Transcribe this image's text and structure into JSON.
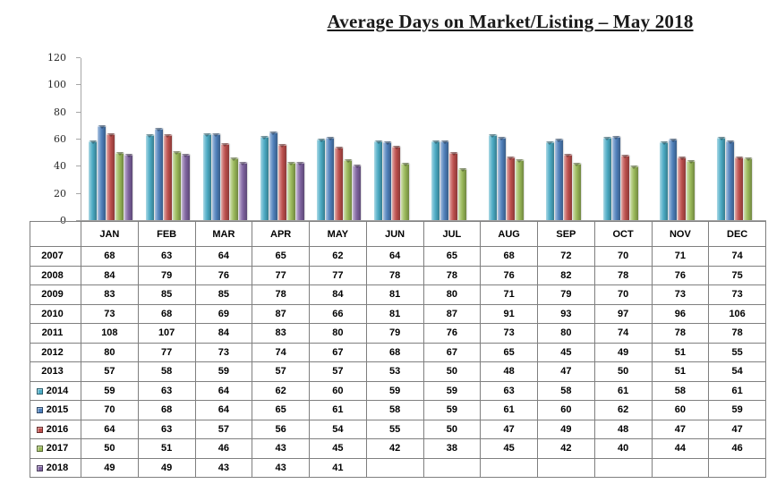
{
  "title": "Average Days on Market/Listing – May 2018",
  "chart_data": {
    "type": "bar",
    "title": "Average Days on Market/Listing – May 2018",
    "categories": [
      "JAN",
      "FEB",
      "MAR",
      "APR",
      "MAY",
      "JUN",
      "JUL",
      "AUG",
      "SEP",
      "OCT",
      "NOV",
      "DEC"
    ],
    "series": [
      {
        "name": "2014",
        "color": "#4BACC6",
        "values": [
          59,
          63,
          64,
          62,
          60,
          59,
          59,
          63,
          58,
          61,
          58,
          61
        ]
      },
      {
        "name": "2015",
        "color": "#4F81BD",
        "values": [
          70,
          68,
          64,
          65,
          61,
          58,
          59,
          61,
          60,
          62,
          60,
          59
        ]
      },
      {
        "name": "2016",
        "color": "#C0504D",
        "values": [
          64,
          63,
          57,
          56,
          54,
          55,
          50,
          47,
          49,
          48,
          47,
          47
        ]
      },
      {
        "name": "2017",
        "color": "#9BBB59",
        "values": [
          50,
          51,
          46,
          43,
          45,
          42,
          38,
          45,
          42,
          40,
          44,
          46
        ]
      },
      {
        "name": "2018",
        "color": "#8064A2",
        "values": [
          49,
          49,
          43,
          43,
          41,
          null,
          null,
          null,
          null,
          null,
          null,
          null
        ]
      }
    ],
    "xlabel": "",
    "ylabel": "",
    "ylim": [
      0,
      120
    ],
    "yticks": [
      0,
      20,
      40,
      60,
      80,
      100,
      120
    ],
    "grid": false,
    "legend_position": "table-row-markers"
  },
  "table": {
    "col_headers": [
      "JAN",
      "FEB",
      "MAR",
      "APR",
      "MAY",
      "JUN",
      "JUL",
      "AUG",
      "SEP",
      "OCT",
      "NOV",
      "DEC"
    ],
    "rows": [
      {
        "year": "2007",
        "series_color": null,
        "values": [
          "68",
          "63",
          "64",
          "65",
          "62",
          "64",
          "65",
          "68",
          "72",
          "70",
          "71",
          "74"
        ]
      },
      {
        "year": "2008",
        "series_color": null,
        "values": [
          "84",
          "79",
          "76",
          "77",
          "77",
          "78",
          "78",
          "76",
          "82",
          "78",
          "76",
          "75"
        ]
      },
      {
        "year": "2009",
        "series_color": null,
        "values": [
          "83",
          "85",
          "85",
          "78",
          "84",
          "81",
          "80",
          "71",
          "79",
          "70",
          "73",
          "73"
        ]
      },
      {
        "year": "2010",
        "series_color": null,
        "values": [
          "73",
          "68",
          "69",
          "87",
          "66",
          "81",
          "87",
          "91",
          "93",
          "97",
          "96",
          "106"
        ]
      },
      {
        "year": "2011",
        "series_color": null,
        "values": [
          "108",
          "107",
          "84",
          "83",
          "80",
          "79",
          "76",
          "73",
          "80",
          "74",
          "78",
          "78"
        ]
      },
      {
        "year": "2012",
        "series_color": null,
        "values": [
          "80",
          "77",
          "73",
          "74",
          "67",
          "68",
          "67",
          "65",
          "45",
          "49",
          "51",
          "55"
        ]
      },
      {
        "year": "2013",
        "series_color": null,
        "values": [
          "57",
          "58",
          "59",
          "57",
          "57",
          "53",
          "50",
          "48",
          "47",
          "50",
          "51",
          "54"
        ]
      },
      {
        "year": "2014",
        "series_color": "#4BACC6",
        "values": [
          "59",
          "63",
          "64",
          "62",
          "60",
          "59",
          "59",
          "63",
          "58",
          "61",
          "58",
          "61"
        ]
      },
      {
        "year": "2015",
        "series_color": "#4F81BD",
        "values": [
          "70",
          "68",
          "64",
          "65",
          "61",
          "58",
          "59",
          "61",
          "60",
          "62",
          "60",
          "59"
        ]
      },
      {
        "year": "2016",
        "series_color": "#C0504D",
        "values": [
          "64",
          "63",
          "57",
          "56",
          "54",
          "55",
          "50",
          "47",
          "49",
          "48",
          "47",
          "47"
        ]
      },
      {
        "year": "2017",
        "series_color": "#9BBB59",
        "values": [
          "50",
          "51",
          "46",
          "43",
          "45",
          "42",
          "38",
          "45",
          "42",
          "40",
          "44",
          "46"
        ]
      },
      {
        "year": "2018",
        "series_color": "#8064A2",
        "values": [
          "49",
          "49",
          "43",
          "43",
          "41",
          "",
          "",
          "",
          "",
          "",
          "",
          ""
        ]
      }
    ]
  }
}
